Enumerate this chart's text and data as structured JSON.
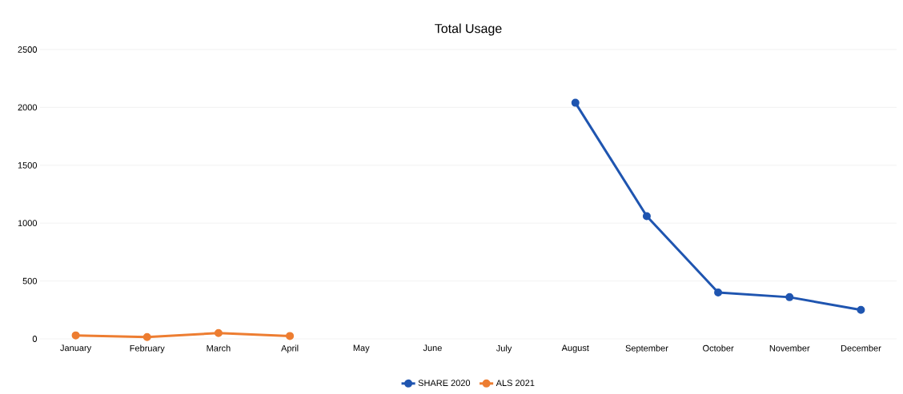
{
  "chart_data": {
    "type": "line",
    "title": "Total Usage",
    "categories": [
      "January",
      "February",
      "March",
      "April",
      "May",
      "June",
      "July",
      "August",
      "September",
      "October",
      "November",
      "December"
    ],
    "series": [
      {
        "name": "SHARE 2020",
        "color": "#1f55b0",
        "values": [
          null,
          null,
          null,
          null,
          null,
          null,
          null,
          2040,
          1060,
          400,
          360,
          250
        ]
      },
      {
        "name": "ALS 2021",
        "color": "#ed7d31",
        "values": [
          30,
          15,
          50,
          25,
          null,
          null,
          null,
          null,
          null,
          null,
          null,
          null
        ]
      }
    ],
    "ylim": [
      0,
      2500
    ],
    "yticks": [
      0,
      500,
      1000,
      1500,
      2000,
      2500
    ],
    "grid": "y",
    "legend": "bottom",
    "marker": "circle",
    "line_style": "solid"
  }
}
